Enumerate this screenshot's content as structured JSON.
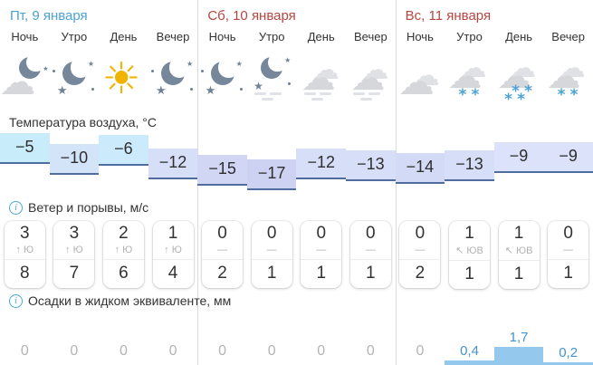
{
  "sections": {
    "temperature_label": "Температура воздуха, °С",
    "wind_label": "Ветер и порывы, м/с",
    "precip_label": "Осадки в жидком эквиваленте, мм"
  },
  "colors": {
    "weekday_blue": "#4da2d2",
    "weekend_red": "#b5463f",
    "info_blue": "#4aa8da",
    "temp_line": "#4f6d9e",
    "moon_slate": "#76879b",
    "star_slate": "#6f8196",
    "cloud_gray": "#d5d7db",
    "cloud_light": "#dfe1e4",
    "fog_gray": "#dfe2e7",
    "sun_yellow": "#f0b400",
    "snow_blue": "#4ba2d9",
    "bar_blue": "#94c9ed",
    "precip_value_blue": "#4394cc",
    "zero_gray": "#b4b4b4"
  },
  "days": [
    {
      "title": "Пт, 9 января",
      "title_color": "#4da2d2",
      "periods": [
        {
          "label": "Ночь",
          "icon": "cloud-moon",
          "temp": "−5",
          "temp_num": -5,
          "temp_color": "#c9ecfb",
          "wind_speed": "3",
          "wind_dir_display": "↑ Ю",
          "gust": "8",
          "precip": "0",
          "precip_num": 0
        },
        {
          "label": "Утро",
          "icon": "clear-night",
          "temp": "−10",
          "temp_num": -10,
          "temp_color": "#d3e4f9",
          "wind_speed": "3",
          "wind_dir_display": "↑ Ю",
          "gust": "7",
          "precip": "0",
          "precip_num": 0
        },
        {
          "label": "День",
          "icon": "sunny",
          "temp": "−6",
          "temp_num": -6,
          "temp_color": "#cbeafb",
          "wind_speed": "2",
          "wind_dir_display": "↑ Ю",
          "gust": "6",
          "precip": "0",
          "precip_num": 0
        },
        {
          "label": "Вечер",
          "icon": "clear-night",
          "temp": "−12",
          "temp_num": -12,
          "temp_color": "#d6def8",
          "wind_speed": "1",
          "wind_dir_display": "↑ Ю",
          "gust": "4",
          "precip": "0",
          "precip_num": 0
        }
      ]
    },
    {
      "title": "Сб, 10 января",
      "title_color": "#b5463f",
      "periods": [
        {
          "label": "Ночь",
          "icon": "clear-night",
          "temp": "−15",
          "temp_num": -15,
          "temp_color": "#d0d6f4",
          "wind_speed": "0",
          "wind_dir_display": "—",
          "gust": "2",
          "precip": "0",
          "precip_num": 0
        },
        {
          "label": "Утро",
          "icon": "night-fog",
          "temp": "−17",
          "temp_num": -17,
          "temp_color": "#cdd2f2",
          "wind_speed": "0",
          "wind_dir_display": "—",
          "gust": "1",
          "precip": "0",
          "precip_num": 0
        },
        {
          "label": "День",
          "icon": "cloud-fog",
          "temp": "−12",
          "temp_num": -12,
          "temp_color": "#d6def8",
          "wind_speed": "0",
          "wind_dir_display": "—",
          "gust": "1",
          "precip": "0",
          "precip_num": 0
        },
        {
          "label": "Вечер",
          "icon": "cloud-fog",
          "temp": "−13",
          "temp_num": -13,
          "temp_color": "#d7dff8",
          "wind_speed": "0",
          "wind_dir_display": "—",
          "gust": "1",
          "precip": "0",
          "precip_num": 0
        }
      ]
    },
    {
      "title": "Вс, 11 января",
      "title_color": "#b5463f",
      "periods": [
        {
          "label": "Ночь",
          "icon": "overcast",
          "temp": "−14",
          "temp_num": -14,
          "temp_color": "#d3daf6",
          "wind_speed": "0",
          "wind_dir_display": "—",
          "gust": "2",
          "precip": "0",
          "precip_num": 0
        },
        {
          "label": "Утро",
          "icon": "snow-light",
          "temp": "−13",
          "temp_num": -13,
          "temp_color": "#d7dff8",
          "wind_speed": "1",
          "wind_dir_display": "↖ ЮВ",
          "gust": "1",
          "precip": "0,4",
          "precip_num": 0.4
        },
        {
          "label": "День",
          "icon": "snow",
          "temp": "−9",
          "temp_num": -9,
          "temp_color": "#dbe2f9",
          "wind_speed": "1",
          "wind_dir_display": "↖ ЮВ",
          "gust": "1",
          "precip": "1,7",
          "precip_num": 1.7
        },
        {
          "label": "Вечер",
          "icon": "snow-light",
          "temp": "−9",
          "temp_num": -9,
          "temp_color": "#dbe2f9",
          "wind_speed": "0",
          "wind_dir_display": "—",
          "gust": "1",
          "precip": "0,2",
          "precip_num": 0.2
        }
      ]
    }
  ]
}
